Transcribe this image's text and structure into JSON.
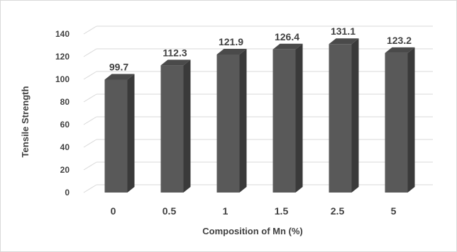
{
  "chart_data": {
    "type": "bar",
    "categories": [
      "0",
      "0.5",
      "1",
      "1.5",
      "2.5",
      "5"
    ],
    "values": [
      99.7,
      112.3,
      121.9,
      126.4,
      131.1,
      123.2
    ],
    "data_labels": [
      "99.7",
      "112.3",
      "121.9",
      "126.4",
      "131.1",
      "123.2"
    ],
    "title": "",
    "xlabel": "Composition of Mn (%)",
    "ylabel": "Tensile Strength",
    "ylim": [
      0,
      140
    ],
    "yticks": [
      "0",
      "20",
      "40",
      "60",
      "80",
      "100",
      "120",
      "140"
    ],
    "grid": true,
    "style": "3d-column",
    "colors": {
      "bar_front": "#595959",
      "bar_side": "#3a3a3a",
      "bar_top": "#4a4a4a",
      "grid": "#d9d9d9",
      "text": "#404040"
    }
  }
}
